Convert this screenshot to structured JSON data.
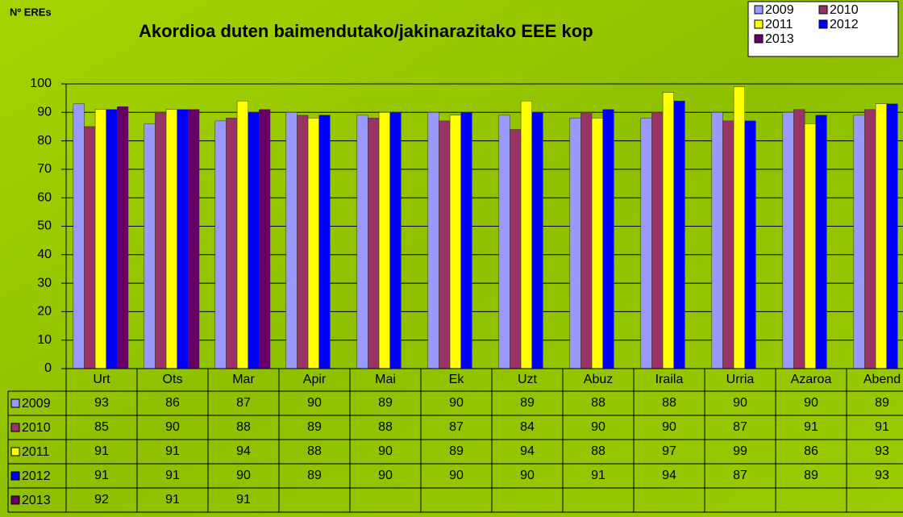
{
  "chart_data": {
    "type": "bar",
    "title": "Akordioa duten baimendutako/jakinarazitako EEE kop",
    "ylabel": "Nº EREs",
    "categories": [
      "Urt",
      "Ots",
      "Mar",
      "Apir",
      "Mai",
      "Ek",
      "Uzt",
      "Abuz",
      "Iraila",
      "Urria",
      "Azaroa",
      "Abend"
    ],
    "series": [
      {
        "name": "2009",
        "color": "#9999ff",
        "values": [
          93,
          86,
          87,
          90,
          89,
          90,
          89,
          88,
          88,
          90,
          90,
          89
        ]
      },
      {
        "name": "2010",
        "color": "#993366",
        "values": [
          85,
          90,
          88,
          89,
          88,
          87,
          84,
          90,
          90,
          87,
          91,
          91
        ]
      },
      {
        "name": "2011",
        "color": "#ffff00",
        "values": [
          91,
          91,
          94,
          88,
          90,
          89,
          94,
          88,
          97,
          99,
          86,
          93
        ]
      },
      {
        "name": "2012",
        "color": "#0000ff",
        "values": [
          91,
          91,
          90,
          89,
          90,
          90,
          90,
          91,
          94,
          87,
          89,
          93
        ]
      },
      {
        "name": "2013",
        "color": "#660066",
        "values": [
          92,
          91,
          91,
          null,
          null,
          null,
          null,
          null,
          null,
          null,
          null,
          null
        ]
      }
    ],
    "ylim": [
      0,
      100
    ],
    "yticks": [
      0,
      10,
      20,
      30,
      40,
      50,
      60,
      70,
      80,
      90,
      100
    ],
    "grid": true,
    "legend": "top-right"
  }
}
